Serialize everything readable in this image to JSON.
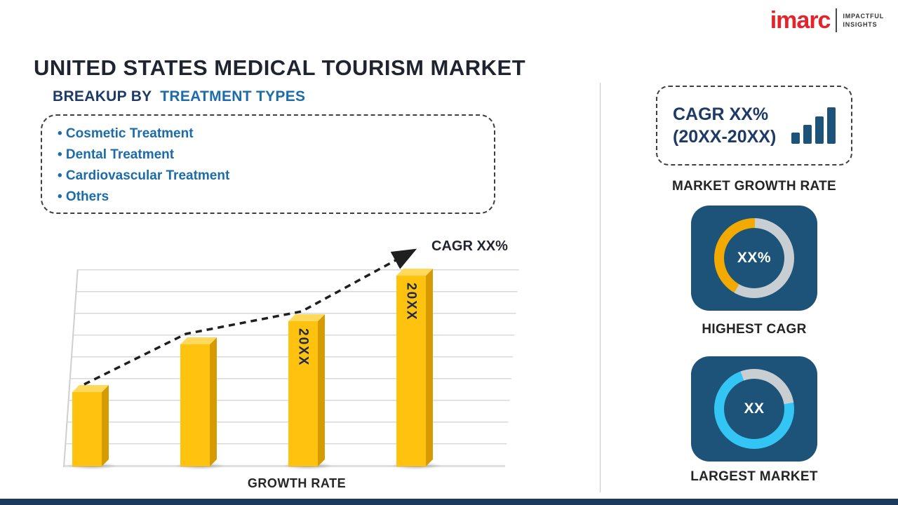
{
  "page": {
    "title": "UNITED STATES MEDICAL TOURISM MARKET"
  },
  "logo": {
    "brand": "imarc",
    "tagline_line1": "IMPACTFUL",
    "tagline_line2": "INSIGHTS",
    "brand_color": "#e4232b"
  },
  "breakup": {
    "heading_prefix": "BREAKUP BY",
    "heading_highlight": "TREATMENT TYPES",
    "items": [
      "• Cosmetic Treatment",
      "• Dental Treatment",
      "• Cardiovascular Treatment",
      "• Others"
    ]
  },
  "right_panel": {
    "growth_box_line1": "CAGR XX%",
    "growth_box_line2": "(20XX-20XX)",
    "growth_caption": "MARKET GROWTH RATE"
  },
  "colors": {
    "accent_blue": "#1b6ca8",
    "heading_navy": "#1e3a66",
    "tile_navy": "#1d5379",
    "bar_gold": "#ffc20e",
    "donut_orange": "#f2a900",
    "donut_cyan": "#33c6f4",
    "donut_track_gray": "#c9ced3",
    "footer_navy": "#1b3a5e",
    "logo_red": "#e4232b"
  },
  "chart_data": [
    {
      "name": "growth-rate-bar-chart",
      "type": "bar",
      "categories": [
        "",
        "",
        "20XX",
        "20XX"
      ],
      "values": [
        38,
        62,
        74,
        97
      ],
      "ylim": [
        0,
        100
      ],
      "unit": "relative-percent-estimated",
      "xlabel": "GROWTH RATE",
      "annotation": "CAGR XX%",
      "trend": "dashed-arrow-rising",
      "bar_color": "#ffc20e",
      "bar_side_color": "#d69b00",
      "bar_top_color": "#ffd95c",
      "grid": true,
      "legend": false
    },
    {
      "name": "highest-cagr-donut",
      "type": "pie",
      "label": "HIGHEST CAGR",
      "center_text": "XX%",
      "start_angle": 210,
      "slices": [
        {
          "name": "cagr-share",
          "value": 42,
          "color": "#f2a900"
        },
        {
          "name": "remainder",
          "value": 58,
          "color": "#c9ced3"
        }
      ]
    },
    {
      "name": "largest-market-donut",
      "type": "pie",
      "label": "LARGEST MARKET",
      "center_text": "XX",
      "start_angle": -20,
      "slices": [
        {
          "name": "remainder",
          "value": 28,
          "color": "#c9ced3"
        },
        {
          "name": "market-share",
          "value": 72,
          "color": "#33c6f4"
        }
      ]
    }
  ]
}
